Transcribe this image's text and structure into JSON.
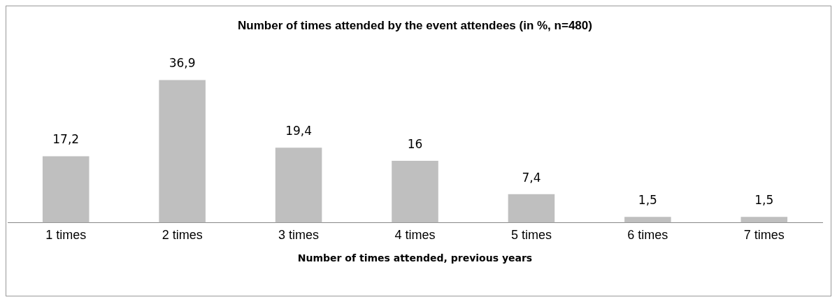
{
  "chart_data": {
    "type": "bar",
    "title": "Number of times attended by the event attendees (in %, n=480)",
    "xlabel": "Number of times attended, previous years",
    "categories": [
      "1 times",
      "2 times",
      "3 times",
      "4 times",
      "5 times",
      "6 times",
      "7 times"
    ],
    "values": [
      17.2,
      36.9,
      19.4,
      16,
      7.4,
      1.5,
      1.5
    ],
    "value_labels": [
      "17,2",
      "36,9",
      "19,4",
      "16",
      "7,4",
      "1,5",
      "1,5"
    ],
    "color": "#bfbfbf",
    "grid": false,
    "legend": false
  }
}
